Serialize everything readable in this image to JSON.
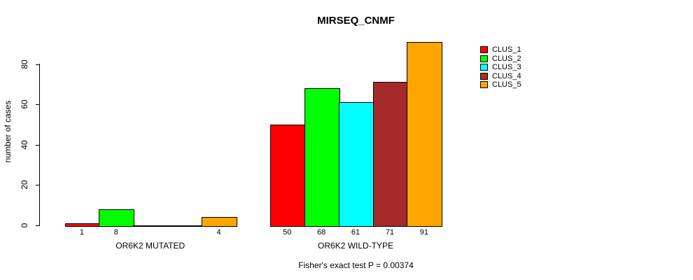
{
  "chart_data": {
    "type": "bar",
    "title": "MIRSEQ_CNMF",
    "ylabel": "number of cases",
    "xlabel": "",
    "categories": [
      "OR6K2 MUTATED",
      "OR6K2 WILD-TYPE"
    ],
    "series": [
      {
        "name": "CLUS_1",
        "color": "#ff0000",
        "values": [
          1,
          50
        ]
      },
      {
        "name": "CLUS_2",
        "color": "#00ff00",
        "values": [
          8,
          68
        ]
      },
      {
        "name": "CLUS_3",
        "color": "#00ffff",
        "values": [
          0,
          61
        ]
      },
      {
        "name": "CLUS_4",
        "color": "#a52a2a",
        "values": [
          0,
          71
        ]
      },
      {
        "name": "CLUS_5",
        "color": "#ffa500",
        "values": [
          4,
          91
        ]
      }
    ],
    "yticks": [
      0,
      20,
      40,
      60,
      80
    ],
    "ylim": [
      0,
      92
    ],
    "grid": false,
    "bar_value_labels_shown": [
      "1",
      "8",
      "4",
      "50",
      "68",
      "61",
      "71",
      "91"
    ],
    "zero_bars_drawn_as_baseline": true,
    "legend_position": "right",
    "annotation": "Fisher's exact test P = 0.00374"
  },
  "colors": {
    "background": "#ffffff",
    "axis": "#000000",
    "bar_border": "#000000"
  }
}
